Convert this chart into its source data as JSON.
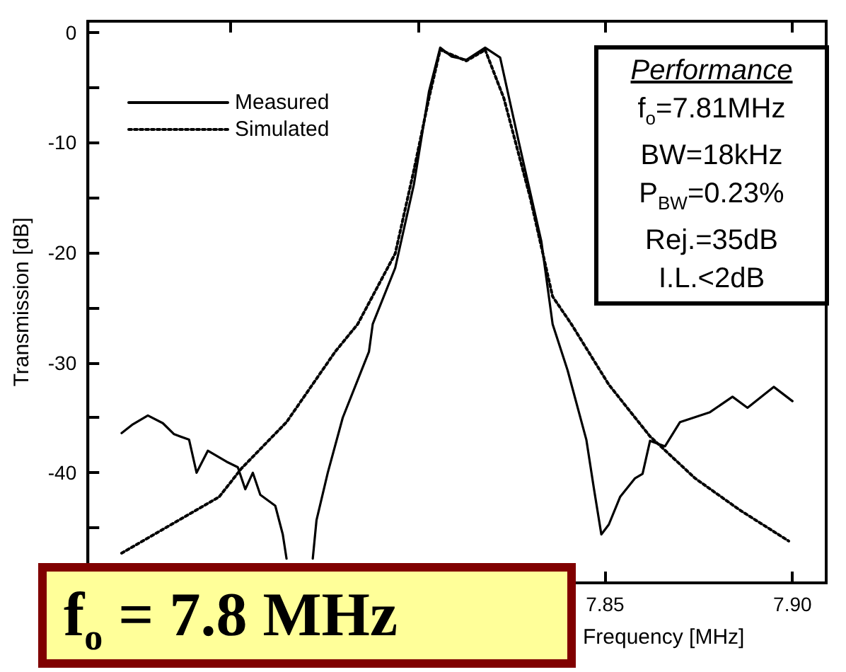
{
  "chart_data": {
    "type": "line",
    "xlabel": "Frequency [MHz]",
    "ylabel": "Transmission [dB]",
    "xlim": [
      7.712,
      7.909
    ],
    "ylim": [
      -50,
      1
    ],
    "xticks": [
      {
        "value": 7.75,
        "label": null
      },
      {
        "value": 7.8,
        "label": null
      },
      7.85,
      {
        "value": 7.9,
        "label": "7.90"
      }
    ],
    "yticks": [
      0,
      {
        "value": -5,
        "label": null
      },
      -10,
      {
        "value": -15,
        "label": null
      },
      -20,
      {
        "value": -25,
        "label": null
      },
      -30,
      {
        "value": -35,
        "label": null
      },
      -40,
      {
        "value": -45,
        "label": null
      }
    ],
    "grid": false,
    "legend": "top left",
    "marker": "none",
    "annotations": [
      "Performance",
      "f$_{o}$=7.81MHz",
      "BW=18kHz",
      "P$_{BW}$=0.23%",
      "Rej.=35dB",
      "I.L.<2dB",
      "f$_{o}$ = 7.8 MHz"
    ],
    "series": [
      {
        "name": "Measured",
        "color": "#000000",
        "line_style": "solid",
        "x": [
          7.721,
          7.724,
          7.728,
          7.732,
          7.735,
          7.739,
          7.741,
          7.744,
          7.749,
          7.752,
          7.754,
          7.756,
          7.758,
          7.762,
          7.764,
          7.765,
          7.768,
          7.772,
          7.773,
          7.776,
          7.78,
          7.787,
          7.788,
          7.794,
          7.799,
          7.803,
          7.806,
          7.809,
          7.813,
          7.818,
          7.822,
          7.827,
          7.833,
          7.836,
          7.84,
          7.845,
          7.847,
          7.849,
          7.851,
          7.854,
          7.858,
          7.86,
          7.862,
          7.866,
          7.87,
          7.878,
          7.884,
          7.888,
          7.895,
          7.9
        ],
        "values": [
          -36.4,
          -35.6,
          -34.8,
          -35.5,
          -36.5,
          -37.0,
          -40.0,
          -38.0,
          -39.0,
          -39.5,
          -41.5,
          -40.0,
          -42.0,
          -43.0,
          -45.6,
          -47.8,
          null,
          -47.8,
          -44.3,
          -40.0,
          -35.0,
          -29.0,
          -26.5,
          -21.4,
          -13.8,
          -5.4,
          -1.4,
          -2.2,
          -2.5,
          -1.4,
          -2.3,
          -10.0,
          -19.0,
          -26.5,
          -30.7,
          -37.0,
          -41.4,
          -45.6,
          -44.7,
          -42.2,
          -40.5,
          -40.1,
          -37.1,
          -37.6,
          -35.4,
          -34.5,
          -33.1,
          -34.1,
          -32.2,
          -33.5
        ]
      },
      {
        "name": "Simulated",
        "color": "#000000",
        "line_style": "dotted",
        "x": [
          7.721,
          7.747,
          7.753,
          7.765,
          7.778,
          7.784,
          7.794,
          7.799,
          7.803,
          7.806,
          7.813,
          7.818,
          7.823,
          7.83,
          7.836,
          7.841,
          7.851,
          7.862,
          7.874,
          7.886,
          7.899
        ],
        "values": [
          -47.3,
          -42.2,
          -39.6,
          -35.4,
          -29.0,
          -26.5,
          -20.1,
          -12.5,
          -6.0,
          -1.6,
          -2.6,
          -1.6,
          -6.0,
          -15.0,
          -24.0,
          -26.5,
          -32.0,
          -36.7,
          -40.5,
          -43.4,
          -46.2
        ]
      }
    ]
  }
}
